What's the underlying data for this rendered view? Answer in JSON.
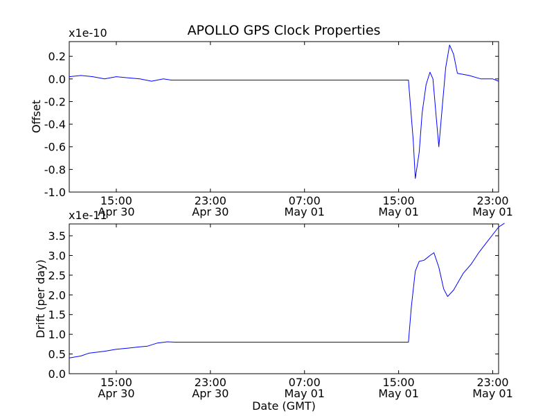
{
  "chart_data": [
    {
      "type": "line",
      "title": "APOLLO GPS Clock Properties",
      "xlabel": "",
      "ylabel": "Offset",
      "y_scale_label": "x1e-10",
      "ylim": [
        -1.0,
        0.33
      ],
      "yticks": [
        {
          "value": 0.2,
          "label": "0.2"
        },
        {
          "value": 0.0,
          "label": "0.0"
        },
        {
          "value": -0.2,
          "label": "-0.2"
        },
        {
          "value": -0.4,
          "label": "-0.4"
        },
        {
          "value": -0.6,
          "label": "-0.6"
        },
        {
          "value": -0.8,
          "label": "-0.8"
        },
        {
          "value": -1.0,
          "label": "-1.0"
        }
      ],
      "xticks": [
        {
          "time": "Apr 30 15:00",
          "line1": "15:00",
          "line2": "Apr 30"
        },
        {
          "time": "Apr 30 23:00",
          "line1": "23:00",
          "line2": "Apr 30"
        },
        {
          "time": "May 01 07:00",
          "line1": "07:00",
          "line2": "May 01"
        },
        {
          "time": "May 01 15:00",
          "line1": "15:00",
          "line2": "May 01"
        },
        {
          "time": "May 01 23:00",
          "line1": "23:00",
          "line2": "May 01"
        }
      ],
      "x_range": [
        "Apr 30 11:00",
        "May 01 23:30"
      ],
      "grid": false,
      "series": [
        {
          "color": "#0000ff",
          "points": [
            [
              "Apr 30 11:00",
              0.02
            ],
            [
              "Apr 30 12:00",
              0.03
            ],
            [
              "Apr 30 13:00",
              0.02
            ],
            [
              "Apr 30 14:00",
              0.0
            ],
            [
              "Apr 30 15:00",
              0.02
            ],
            [
              "Apr 30 16:00",
              0.01
            ],
            [
              "Apr 30 17:00",
              0.0
            ],
            [
              "Apr 30 18:00",
              -0.02
            ],
            [
              "Apr 30 19:00",
              0.0
            ],
            [
              "Apr 30 19:40",
              -0.01
            ],
            [
              "May 01 15:50",
              -0.01
            ],
            [
              "May 01 16:15",
              -0.55
            ],
            [
              "May 01 16:25",
              -0.88
            ],
            [
              "May 01 16:45",
              -0.65
            ],
            [
              "May 01 17:00",
              -0.3
            ],
            [
              "May 01 17:20",
              -0.05
            ],
            [
              "May 01 17:40",
              0.06
            ],
            [
              "May 01 17:55",
              0.0
            ],
            [
              "May 01 18:10",
              -0.3
            ],
            [
              "May 01 18:25",
              -0.6
            ],
            [
              "May 01 18:40",
              -0.3
            ],
            [
              "May 01 19:00",
              0.1
            ],
            [
              "May 01 19:20",
              0.3
            ],
            [
              "May 01 19:40",
              0.22
            ],
            [
              "May 01 20:00",
              0.05
            ],
            [
              "May 01 21:00",
              0.03
            ],
            [
              "May 01 22:00",
              0.0
            ],
            [
              "May 01 23:00",
              0.0
            ],
            [
              "May 01 23:30",
              -0.02
            ]
          ]
        }
      ]
    },
    {
      "type": "line",
      "title": "",
      "xlabel": "Date (GMT)",
      "ylabel": "Drift (per day)",
      "y_scale_label": "x1e-11",
      "ylim": [
        0.0,
        3.8
      ],
      "yticks": [
        {
          "value": 3.5,
          "label": "3.5"
        },
        {
          "value": 3.0,
          "label": "3.0"
        },
        {
          "value": 2.5,
          "label": "2.5"
        },
        {
          "value": 2.0,
          "label": "2.0"
        },
        {
          "value": 1.5,
          "label": "1.5"
        },
        {
          "value": 1.0,
          "label": "1.0"
        },
        {
          "value": 0.5,
          "label": "0.5"
        },
        {
          "value": 0.0,
          "label": "0.0"
        }
      ],
      "xticks": [
        {
          "time": "Apr 30 15:00",
          "line1": "15:00",
          "line2": "Apr 30"
        },
        {
          "time": "Apr 30 23:00",
          "line1": "23:00",
          "line2": "Apr 30"
        },
        {
          "time": "May 01 07:00",
          "line1": "07:00",
          "line2": "May 01"
        },
        {
          "time": "May 01 15:00",
          "line1": "15:00",
          "line2": "May 01"
        },
        {
          "time": "May 01 23:00",
          "line1": "23:00",
          "line2": "May 01"
        }
      ],
      "x_range": [
        "Apr 30 11:00",
        "May 01 23:30"
      ],
      "grid": false,
      "series": [
        {
          "color": "#0000ff",
          "points": [
            [
              "Apr 30 11:00",
              0.4
            ],
            [
              "Apr 30 12:00",
              0.45
            ],
            [
              "Apr 30 12:40",
              0.52
            ],
            [
              "Apr 30 14:00",
              0.57
            ],
            [
              "Apr 30 15:00",
              0.62
            ],
            [
              "Apr 30 16:00",
              0.65
            ],
            [
              "Apr 30 17:00",
              0.68
            ],
            [
              "Apr 30 17:40",
              0.7
            ],
            [
              "Apr 30 18:30",
              0.78
            ],
            [
              "Apr 30 19:20",
              0.81
            ],
            [
              "Apr 30 20:00",
              0.8
            ],
            [
              "May 01 15:50",
              0.8
            ],
            [
              "May 01 16:05",
              1.7
            ],
            [
              "May 01 16:25",
              2.6
            ],
            [
              "May 01 16:45",
              2.85
            ],
            [
              "May 01 17:10",
              2.88
            ],
            [
              "May 01 17:40",
              3.0
            ],
            [
              "May 01 18:00",
              3.07
            ],
            [
              "May 01 18:25",
              2.7
            ],
            [
              "May 01 18:50",
              2.15
            ],
            [
              "May 01 19:10",
              1.96
            ],
            [
              "May 01 19:40",
              2.12
            ],
            [
              "May 01 20:30",
              2.55
            ],
            [
              "May 01 21:10",
              2.78
            ],
            [
              "May 01 21:50",
              3.08
            ],
            [
              "May 01 22:40",
              3.4
            ],
            [
              "May 01 23:30",
              3.72
            ],
            [
              "May 02 00:00",
              3.82
            ]
          ]
        }
      ]
    }
  ]
}
